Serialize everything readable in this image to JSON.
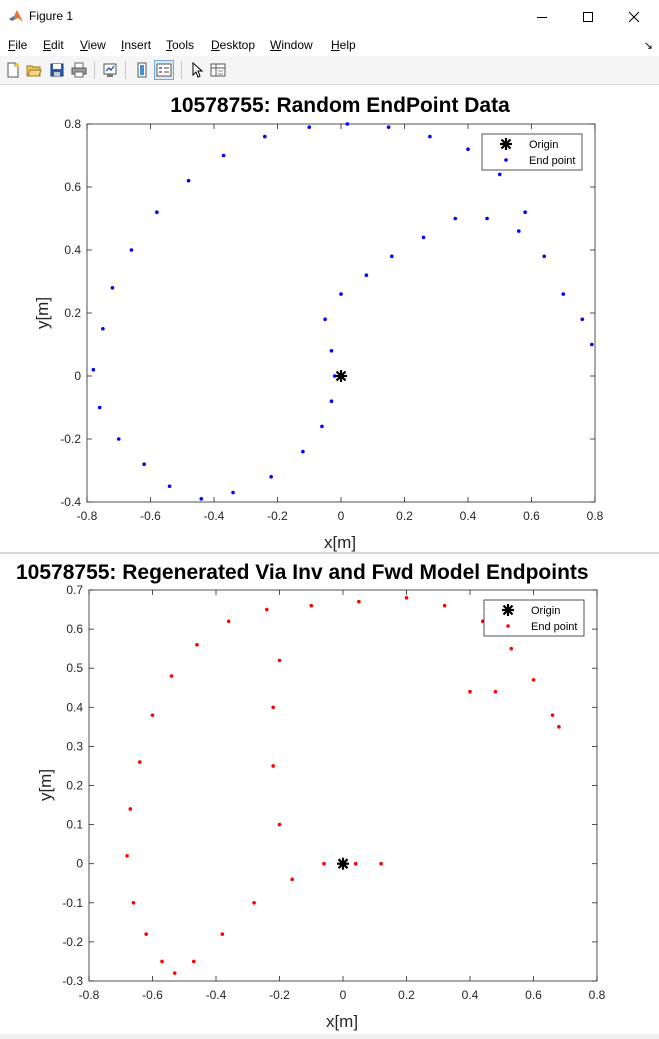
{
  "window": {
    "title": "Figure 1"
  },
  "menu": {
    "items": [
      {
        "label": "File",
        "key": "F",
        "rest": "ile"
      },
      {
        "label": "Edit",
        "key": "E",
        "rest": "dit"
      },
      {
        "label": "View",
        "key": "V",
        "rest": "iew"
      },
      {
        "label": "Insert",
        "key": "I",
        "rest": "nsert"
      },
      {
        "label": "Tools",
        "key": "T",
        "rest": "ools"
      },
      {
        "label": "Desktop",
        "key": "D",
        "rest": "esktop"
      },
      {
        "label": "Window",
        "key": "W",
        "rest": "indow"
      },
      {
        "label": "Help",
        "key": "H",
        "rest": "elp"
      }
    ]
  },
  "toolbar": {
    "icons": [
      "new-figure-icon",
      "open-file-icon",
      "save-icon",
      "print-icon",
      "link-plot-icon",
      "colorbar-icon",
      "legend-icon",
      "edit-plot-icon",
      "property-inspector-icon"
    ]
  },
  "plot1": {
    "title": "10578755: Random EndPoint Data",
    "xlabel": "x[m]",
    "ylabel": "y[m]",
    "xlim": [
      -0.8,
      0.8
    ],
    "ylim": [
      -0.4,
      0.8
    ],
    "xticks": [
      "-0.8",
      "-0.6",
      "-0.4",
      "-0.2",
      "0",
      "0.2",
      "0.4",
      "0.6",
      "0.8"
    ],
    "yticks": [
      "-0.4",
      "-0.2",
      "0",
      "0.2",
      "0.4",
      "0.6",
      "0.8"
    ],
    "legend": {
      "origin": "Origin",
      "endpoint": "End point",
      "placement": "top-right"
    },
    "color": "#0000ff"
  },
  "plot2": {
    "title": "10578755: Regenerated Via Inv and Fwd Model Endpoints",
    "xlabel": "x[m]",
    "ylabel": "y[m]",
    "xlim": [
      -0.8,
      0.8
    ],
    "ylim": [
      -0.3,
      0.7
    ],
    "xticks": [
      "-0.8",
      "-0.6",
      "-0.4",
      "-0.2",
      "0",
      "0.2",
      "0.4",
      "0.6",
      "0.8"
    ],
    "yticks": [
      "-0.3",
      "-0.2",
      "-0.1",
      "0",
      "0.1",
      "0.2",
      "0.3",
      "0.4",
      "0.5",
      "0.6",
      "0.7"
    ],
    "legend": {
      "origin": "Origin",
      "endpoint": "End point",
      "placement": "top-right"
    },
    "color": "#ff0000"
  },
  "chart_data": [
    {
      "type": "scatter",
      "title": "10578755: Random EndPoint Data",
      "xlabel": "x[m]",
      "ylabel": "y[m]",
      "xlim": [
        -0.8,
        0.8
      ],
      "ylim": [
        -0.4,
        0.8
      ],
      "grid": false,
      "legend_placement": "top-right",
      "series": [
        {
          "name": "Origin",
          "marker": "*",
          "color": "#000000",
          "points": [
            [
              0,
              0
            ]
          ]
        },
        {
          "name": "End point",
          "marker": ".",
          "color": "#0000ff",
          "points": [
            [
              -0.78,
              0.02
            ],
            [
              -0.75,
              0.15
            ],
            [
              -0.72,
              0.28
            ],
            [
              -0.66,
              0.4
            ],
            [
              -0.58,
              0.52
            ],
            [
              -0.48,
              0.62
            ],
            [
              -0.37,
              0.7
            ],
            [
              -0.24,
              0.76
            ],
            [
              -0.1,
              0.79
            ],
            [
              0.02,
              0.8
            ],
            [
              0.15,
              0.79
            ],
            [
              0.28,
              0.76
            ],
            [
              0.4,
              0.72
            ],
            [
              0.5,
              0.64
            ],
            [
              0.58,
              0.52
            ],
            [
              0.64,
              0.38
            ],
            [
              0.7,
              0.26
            ],
            [
              0.76,
              0.18
            ],
            [
              0.79,
              0.1
            ],
            [
              -0.76,
              -0.1
            ],
            [
              -0.7,
              -0.2
            ],
            [
              -0.62,
              -0.28
            ],
            [
              -0.54,
              -0.35
            ],
            [
              -0.44,
              -0.39
            ],
            [
              -0.34,
              -0.37
            ],
            [
              -0.22,
              -0.32
            ],
            [
              -0.12,
              -0.24
            ],
            [
              -0.06,
              -0.16
            ],
            [
              -0.03,
              -0.08
            ],
            [
              -0.02,
              0.0
            ],
            [
              -0.03,
              0.08
            ],
            [
              -0.05,
              0.18
            ],
            [
              0.0,
              0.26
            ],
            [
              0.08,
              0.32
            ],
            [
              0.16,
              0.38
            ],
            [
              0.26,
              0.44
            ],
            [
              0.36,
              0.5
            ],
            [
              0.46,
              0.5
            ],
            [
              0.56,
              0.46
            ]
          ]
        }
      ]
    },
    {
      "type": "scatter",
      "title": "10578755: Regenerated Via Inv and Fwd Model Endpoints",
      "xlabel": "x[m]",
      "ylabel": "y[m]",
      "xlim": [
        -0.8,
        0.8
      ],
      "ylim": [
        -0.3,
        0.7
      ],
      "grid": false,
      "legend_placement": "top-right",
      "series": [
        {
          "name": "Origin",
          "marker": "*",
          "color": "#000000",
          "points": [
            [
              0,
              0
            ]
          ]
        },
        {
          "name": "End point",
          "marker": ".",
          "color": "#ff0000",
          "points": [
            [
              -0.68,
              0.02
            ],
            [
              -0.67,
              0.14
            ],
            [
              -0.64,
              0.26
            ],
            [
              -0.6,
              0.38
            ],
            [
              -0.54,
              0.48
            ],
            [
              -0.46,
              0.56
            ],
            [
              -0.36,
              0.62
            ],
            [
              -0.24,
              0.65
            ],
            [
              -0.1,
              0.66
            ],
            [
              0.05,
              0.67
            ],
            [
              0.2,
              0.68
            ],
            [
              0.32,
              0.66
            ],
            [
              0.44,
              0.62
            ],
            [
              0.53,
              0.55
            ],
            [
              0.6,
              0.47
            ],
            [
              0.66,
              0.38
            ],
            [
              0.68,
              0.35
            ],
            [
              -0.66,
              -0.1
            ],
            [
              -0.62,
              -0.18
            ],
            [
              -0.57,
              -0.25
            ],
            [
              -0.53,
              -0.28
            ],
            [
              -0.47,
              -0.25
            ],
            [
              -0.38,
              -0.18
            ],
            [
              -0.28,
              -0.1
            ],
            [
              -0.16,
              -0.04
            ],
            [
              -0.06,
              0.0
            ],
            [
              0.04,
              0.0
            ],
            [
              0.12,
              0.0
            ],
            [
              -0.2,
              0.1
            ],
            [
              -0.22,
              0.25
            ],
            [
              -0.22,
              0.4
            ],
            [
              -0.2,
              0.52
            ],
            [
              0.4,
              0.44
            ],
            [
              0.48,
              0.44
            ]
          ]
        }
      ]
    }
  ]
}
